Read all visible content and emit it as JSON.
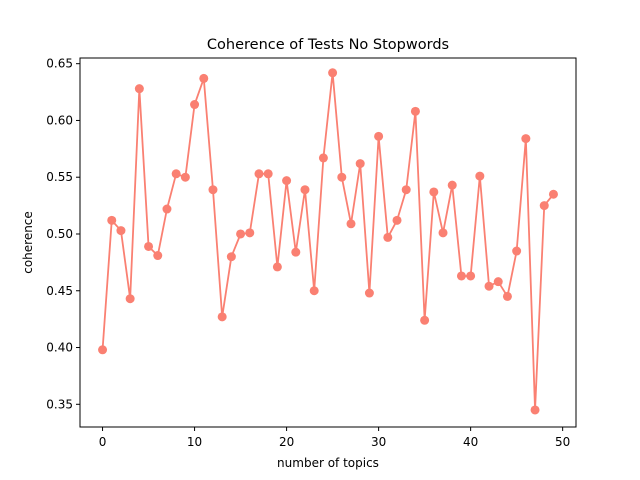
{
  "chart_data": {
    "type": "line",
    "title": "Coherence of Tests No Stopwords",
    "xlabel": "number of topics",
    "ylabel": "coherence",
    "xlim": [
      -2.45,
      51.45
    ],
    "ylim": [
      0.33,
      0.655
    ],
    "xticks": [
      0,
      10,
      20,
      30,
      40,
      50
    ],
    "yticks": [
      0.35,
      0.4,
      0.45,
      0.5,
      0.55,
      0.6,
      0.65
    ],
    "grid": false,
    "color": "#fa8072",
    "series": [
      {
        "x": [
          0,
          1,
          2,
          3,
          4,
          5,
          6,
          7,
          8,
          9,
          10,
          11,
          12,
          13,
          14,
          15,
          16,
          17,
          18,
          19,
          20,
          21,
          22,
          23,
          24,
          25,
          26,
          27,
          28,
          29,
          30,
          31,
          32,
          33,
          34,
          35,
          36,
          37,
          38,
          39,
          40,
          41,
          42,
          43,
          44,
          45,
          46,
          47,
          48,
          49
        ],
        "values": [
          0.398,
          0.512,
          0.503,
          0.443,
          0.628,
          0.489,
          0.481,
          0.522,
          0.553,
          0.55,
          0.614,
          0.637,
          0.539,
          0.427,
          0.48,
          0.5,
          0.501,
          0.553,
          0.553,
          0.471,
          0.547,
          0.484,
          0.539,
          0.45,
          0.567,
          0.642,
          0.55,
          0.509,
          0.562,
          0.448,
          0.586,
          0.497,
          0.512,
          0.539,
          0.608,
          0.424,
          0.537,
          0.501,
          0.543,
          0.463,
          0.463,
          0.551,
          0.454,
          0.458,
          0.445,
          0.485,
          0.584,
          0.345,
          0.525,
          0.535
        ]
      }
    ]
  }
}
